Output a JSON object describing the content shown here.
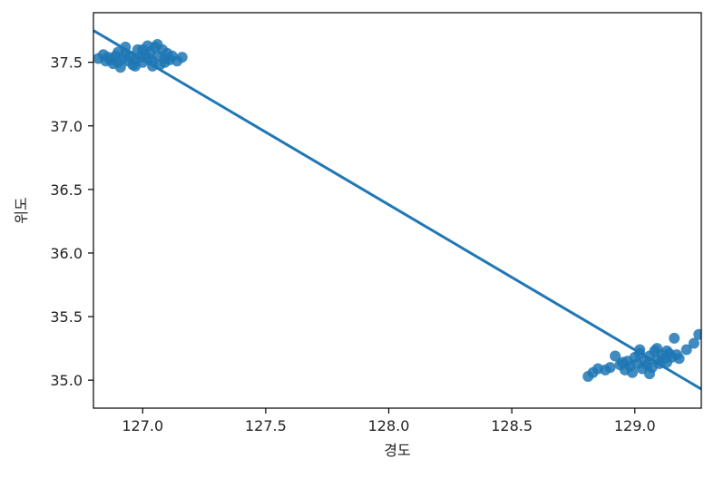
{
  "chart_data": {
    "type": "scatter",
    "title": "",
    "xlabel": "경도",
    "ylabel": "위도",
    "xlim": [
      126.8,
      129.27
    ],
    "ylim": [
      34.78,
      37.89
    ],
    "xticks": [
      127.0,
      127.5,
      128.0,
      128.5,
      129.0
    ],
    "xtick_labels": [
      "127.0",
      "127.5",
      "128.0",
      "128.5",
      "129.0"
    ],
    "yticks": [
      35.0,
      35.5,
      36.0,
      36.5,
      37.0,
      37.5
    ],
    "ytick_labels": [
      "35.0",
      "35.5",
      "36.0",
      "36.5",
      "37.0",
      "37.5"
    ],
    "grid": false,
    "legend": "none",
    "colors": {
      "points": "#1f77b4",
      "line": "#1f77b4",
      "axes": "#000000"
    },
    "regression_line": {
      "x": [
        126.8,
        129.27
      ],
      "y": [
        37.75,
        34.93
      ]
    },
    "points": [
      [
        126.82,
        37.53
      ],
      [
        126.84,
        37.56
      ],
      [
        126.85,
        37.51
      ],
      [
        126.86,
        37.54
      ],
      [
        126.87,
        37.52
      ],
      [
        126.88,
        37.49
      ],
      [
        126.89,
        37.55
      ],
      [
        126.9,
        37.5
      ],
      [
        126.91,
        37.46
      ],
      [
        126.92,
        37.53
      ],
      [
        126.93,
        37.57
      ],
      [
        126.94,
        37.51
      ],
      [
        126.95,
        37.55
      ],
      [
        126.96,
        37.48
      ],
      [
        126.97,
        37.52
      ],
      [
        126.98,
        37.6
      ],
      [
        126.99,
        37.54
      ],
      [
        127.0,
        37.5
      ],
      [
        127.01,
        37.56
      ],
      [
        127.02,
        37.53
      ],
      [
        127.03,
        37.58
      ],
      [
        127.04,
        37.51
      ],
      [
        127.05,
        37.62
      ],
      [
        127.06,
        37.55
      ],
      [
        127.07,
        37.48
      ],
      [
        127.08,
        37.6
      ],
      [
        127.09,
        37.53
      ],
      [
        127.1,
        37.57
      ],
      [
        127.11,
        37.52
      ],
      [
        127.12,
        37.55
      ],
      [
        127.14,
        37.51
      ],
      [
        127.16,
        37.54
      ],
      [
        126.93,
        37.62
      ],
      [
        127.02,
        37.63
      ],
      [
        127.06,
        37.64
      ],
      [
        126.97,
        37.47
      ],
      [
        127.04,
        37.47
      ],
      [
        127.09,
        37.5
      ],
      [
        126.9,
        37.58
      ],
      [
        127.0,
        37.6
      ],
      [
        128.81,
        35.03
      ],
      [
        128.83,
        35.06
      ],
      [
        128.85,
        35.09
      ],
      [
        128.88,
        35.08
      ],
      [
        128.9,
        35.1
      ],
      [
        128.92,
        35.19
      ],
      [
        128.94,
        35.12
      ],
      [
        128.96,
        35.08
      ],
      [
        128.97,
        35.15
      ],
      [
        128.98,
        35.11
      ],
      [
        128.99,
        35.06
      ],
      [
        129.0,
        35.18
      ],
      [
        129.01,
        35.13
      ],
      [
        129.02,
        35.21
      ],
      [
        129.03,
        35.09
      ],
      [
        129.04,
        35.15
      ],
      [
        129.05,
        35.12
      ],
      [
        129.06,
        35.19
      ],
      [
        129.07,
        35.1
      ],
      [
        129.08,
        35.23
      ],
      [
        129.09,
        35.16
      ],
      [
        129.1,
        35.13
      ],
      [
        129.11,
        35.2
      ],
      [
        129.12,
        35.17
      ],
      [
        129.13,
        35.14
      ],
      [
        129.14,
        35.21
      ],
      [
        129.15,
        35.18
      ],
      [
        129.16,
        35.33
      ],
      [
        129.17,
        35.2
      ],
      [
        129.18,
        35.17
      ],
      [
        129.21,
        35.24
      ],
      [
        129.24,
        35.29
      ],
      [
        129.26,
        35.36
      ],
      [
        129.02,
        35.24
      ],
      [
        129.06,
        35.05
      ],
      [
        128.95,
        35.14
      ],
      [
        129.09,
        35.25
      ],
      [
        129.13,
        35.23
      ]
    ]
  }
}
